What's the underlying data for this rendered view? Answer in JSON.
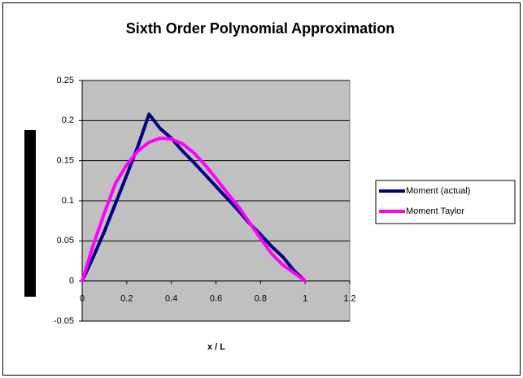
{
  "chart_data": {
    "type": "line",
    "title": "Sixth Order Polynomial Approximation",
    "x_label": "x / L",
    "x": [
      0,
      0.05,
      0.1,
      0.15,
      0.2,
      0.25,
      0.3,
      0.35,
      0.4,
      0.45,
      0.5,
      0.55,
      0.6,
      0.65,
      0.7,
      0.75,
      0.8,
      0.85,
      0.9,
      0.95,
      1
    ],
    "series": [
      {
        "name": "Moment (actual)",
        "color": "#000080",
        "values": [
          0,
          0.03,
          0.062,
          0.097,
          0.132,
          0.168,
          0.208,
          0.19,
          0.178,
          0.162,
          0.148,
          0.133,
          0.118,
          0.103,
          0.088,
          0.072,
          0.058,
          0.043,
          0.03,
          0.013,
          0
        ]
      },
      {
        "name": "Moment Taylor",
        "color": "#ff00ff",
        "values": [
          0,
          0.045,
          0.085,
          0.122,
          0.145,
          0.162,
          0.173,
          0.178,
          0.177,
          0.171,
          0.16,
          0.145,
          0.128,
          0.11,
          0.093,
          0.073,
          0.053,
          0.034,
          0.02,
          0.01,
          0
        ]
      }
    ],
    "xlim": [
      0,
      1.2
    ],
    "xticks": [
      0,
      0.2,
      0.4,
      0.6,
      0.8,
      1,
      1.2
    ],
    "ylim": [
      -0.05,
      0.25
    ],
    "yticks": [
      -0.05,
      0,
      0.05,
      0.1,
      0.15,
      0.2,
      0.25
    ],
    "grid": true,
    "plot_background": "#c0c0c0",
    "legend": "right"
  }
}
